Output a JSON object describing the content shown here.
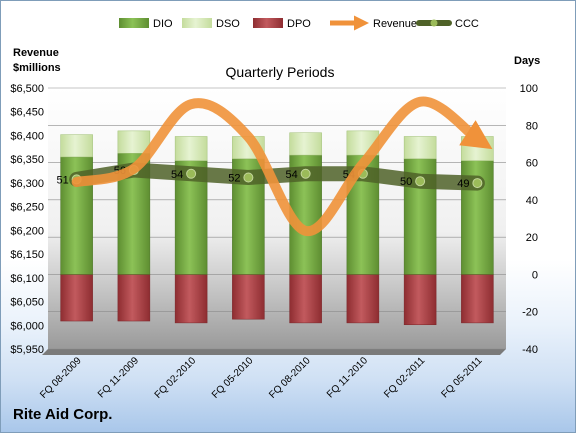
{
  "chart_data": {
    "type": "bar",
    "title": "Quarterly Periods",
    "categories": [
      "FQ 08-2009",
      "FQ 11-2009",
      "FQ 02-2010",
      "FQ 05-2010",
      "FQ 08-2010",
      "FQ 11-2010",
      "FQ 02-2011",
      "FQ 05-2011"
    ],
    "series": [
      {
        "name": "DIO",
        "axis": "right",
        "type": "stacked-bar",
        "color": "#7ab648",
        "values": [
          63,
          65,
          61,
          62,
          64,
          64,
          62,
          61
        ]
      },
      {
        "name": "DSO",
        "axis": "right",
        "type": "stacked-bar",
        "color": "#d8ecb8",
        "values": [
          12,
          12,
          13,
          12,
          12,
          13,
          12,
          13
        ]
      },
      {
        "name": "DPO",
        "axis": "right",
        "type": "stacked-bar-negative",
        "color": "#b5464a",
        "values": [
          -25,
          -25,
          -26,
          -24,
          -26,
          -26,
          -27,
          -26
        ]
      },
      {
        "name": "Revenue",
        "axis": "left",
        "type": "smooth-line",
        "color": "#f0923a",
        "values": [
          6302,
          6330,
          6466,
          6397,
          6199,
          6340,
          6471,
          6392
        ]
      },
      {
        "name": "CCC",
        "axis": "right",
        "type": "line",
        "color": "#4f6228",
        "values": [
          51,
          56,
          54,
          52,
          54,
          54,
          50,
          49
        ],
        "labels": [
          "51",
          "56",
          "54",
          "52",
          "54",
          "54",
          "50",
          "49"
        ]
      }
    ],
    "left_axis": {
      "title": "Revenue $millions",
      "min": 5950,
      "max": 6500,
      "step": 50,
      "ticks": [
        "$5,950",
        "$6,000",
        "$6,050",
        "$6,100",
        "$6,150",
        "$6,200",
        "$6,250",
        "$6,300",
        "$6,350",
        "$6,400",
        "$6,450",
        "$6,500"
      ]
    },
    "right_axis": {
      "title": "Days",
      "min": -40,
      "max": 100,
      "step": 20,
      "ticks": [
        "-40",
        "-20",
        "0",
        "20",
        "40",
        "60",
        "80",
        "100"
      ]
    },
    "legend": {
      "position": "top",
      "items": [
        "DIO",
        "DSO",
        "DPO",
        "Revenue",
        "CCC"
      ]
    },
    "grid": true
  },
  "company": "Rite Aid Corp."
}
